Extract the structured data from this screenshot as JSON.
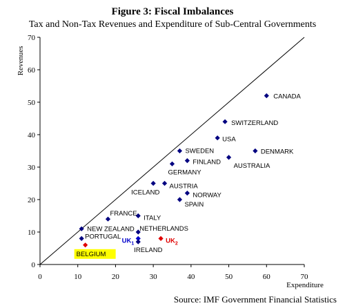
{
  "title": "Figure 3: Fiscal Imbalances",
  "subtitle": "Tax and Non-Tax Revenues and Expenditure of Sub-Central Governments",
  "source": "Source: IMF Government Financial Statistics",
  "colors": {
    "default": "#000080",
    "uk": "#0000cc",
    "uk2": "#e00000",
    "portugal_red": "#e00000",
    "highlight": "#ffff00"
  },
  "chart_data": {
    "type": "scatter",
    "xlabel": "Expenditure",
    "ylabel": "Revenues",
    "xlim": [
      0,
      70
    ],
    "ylim": [
      0,
      70
    ],
    "xticks": [
      "0",
      "10",
      "20",
      "30",
      "40",
      "50",
      "60",
      "70"
    ],
    "yticks": [
      "0",
      "10",
      "20",
      "30",
      "40",
      "50",
      "60",
      "70"
    ],
    "reference_line": "45-degree",
    "points": [
      {
        "label": "CANADA",
        "x": 60,
        "y": 52,
        "color": "#000080"
      },
      {
        "label": "SWITZERLAND",
        "x": 49,
        "y": 44,
        "color": "#000080"
      },
      {
        "label": "USA",
        "x": 47,
        "y": 39,
        "color": "#000080"
      },
      {
        "label": "DENMARK",
        "x": 57,
        "y": 35,
        "color": "#000080"
      },
      {
        "label": "SWEDEN",
        "x": 37,
        "y": 35,
        "color": "#000080"
      },
      {
        "label": "AUSTRALIA",
        "x": 50,
        "y": 33,
        "color": "#000080"
      },
      {
        "label": "FINLAND",
        "x": 39,
        "y": 32,
        "color": "#000080"
      },
      {
        "label": "GERMANY",
        "x": 35,
        "y": 31,
        "color": "#000080"
      },
      {
        "label": "AUSTRIA",
        "x": 33,
        "y": 25,
        "color": "#000080"
      },
      {
        "label": "ICELAND",
        "x": 30,
        "y": 25,
        "color": "#000080"
      },
      {
        "label": "NORWAY",
        "x": 39,
        "y": 22,
        "color": "#000080"
      },
      {
        "label": "SPAIN",
        "x": 37,
        "y": 20,
        "color": "#000080"
      },
      {
        "label": "FRANCE",
        "x": 18,
        "y": 14,
        "color": "#000080"
      },
      {
        "label": "ITALY",
        "x": 26,
        "y": 15,
        "color": "#000080"
      },
      {
        "label": "NEW ZEALAND",
        "x": 11,
        "y": 11,
        "color": "#000080"
      },
      {
        "label": "NETHERLANDS",
        "x": 26,
        "y": 10,
        "color": "#000080"
      },
      {
        "label": "PORTUGAL",
        "x": 11,
        "y": 8,
        "color": "#000080"
      },
      {
        "label": "UK1",
        "x": 26,
        "y": 8,
        "color": "#0000cc"
      },
      {
        "label": "IRELAND",
        "x": 26,
        "y": 7,
        "color": "#000080"
      },
      {
        "label": "UK2",
        "x": 32,
        "y": 8,
        "color": "#e00000"
      },
      {
        "label": "BELGIUM",
        "x": 12,
        "y": 6,
        "color": "#e00000"
      }
    ]
  }
}
